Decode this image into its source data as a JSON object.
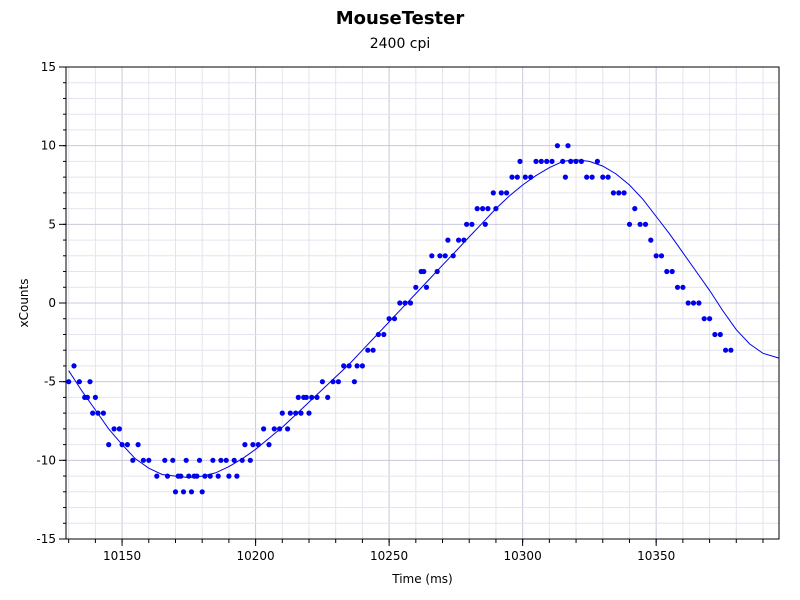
{
  "chart_data": {
    "type": "scatter",
    "title": "MouseTester",
    "subtitle": "2400 cpi",
    "xlabel": "Time (ms)",
    "ylabel": "xCounts",
    "xlim": [
      10129,
      10396
    ],
    "ylim": [
      -15,
      15
    ],
    "xticks": [
      10150,
      10200,
      10250,
      10300,
      10350
    ],
    "yticks": [
      -15,
      -10,
      -5,
      0,
      5,
      10,
      15
    ],
    "grid": true,
    "colors": {
      "series": "#0000ee",
      "grid_major": "#c8c8dc",
      "grid_minor": "#e4e4ee",
      "axis": "#000000"
    },
    "series": [
      {
        "points": [
          [
            10130,
            -5
          ],
          [
            10132,
            -4
          ],
          [
            10134,
            -5
          ],
          [
            10136,
            -6
          ],
          [
            10137,
            -6
          ],
          [
            10138,
            -5
          ],
          [
            10139,
            -7
          ],
          [
            10140,
            -6
          ],
          [
            10141,
            -7
          ],
          [
            10143,
            -7
          ],
          [
            10145,
            -9
          ],
          [
            10147,
            -8
          ],
          [
            10149,
            -8
          ],
          [
            10150,
            -9
          ],
          [
            10152,
            -9
          ],
          [
            10154,
            -10
          ],
          [
            10156,
            -9
          ],
          [
            10158,
            -10
          ],
          [
            10160,
            -10
          ],
          [
            10163,
            -11
          ],
          [
            10166,
            -10
          ],
          [
            10167,
            -11
          ],
          [
            10169,
            -10
          ],
          [
            10170,
            -12
          ],
          [
            10171,
            -11
          ],
          [
            10172,
            -11
          ],
          [
            10173,
            -12
          ],
          [
            10174,
            -10
          ],
          [
            10175,
            -11
          ],
          [
            10176,
            -12
          ],
          [
            10177,
            -11
          ],
          [
            10178,
            -11
          ],
          [
            10179,
            -10
          ],
          [
            10180,
            -12
          ],
          [
            10181,
            -11
          ],
          [
            10183,
            -11
          ],
          [
            10184,
            -10
          ],
          [
            10186,
            -11
          ],
          [
            10187,
            -10
          ],
          [
            10189,
            -10
          ],
          [
            10190,
            -11
          ],
          [
            10192,
            -10
          ],
          [
            10193,
            -11
          ],
          [
            10195,
            -10
          ],
          [
            10196,
            -9
          ],
          [
            10198,
            -10
          ],
          [
            10199,
            -9
          ],
          [
            10201,
            -9
          ],
          [
            10203,
            -8
          ],
          [
            10205,
            -9
          ],
          [
            10207,
            -8
          ],
          [
            10209,
            -8
          ],
          [
            10210,
            -7
          ],
          [
            10212,
            -8
          ],
          [
            10213,
            -7
          ],
          [
            10215,
            -7
          ],
          [
            10216,
            -6
          ],
          [
            10217,
            -7
          ],
          [
            10218,
            -6
          ],
          [
            10219,
            -6
          ],
          [
            10220,
            -7
          ],
          [
            10221,
            -6
          ],
          [
            10223,
            -6
          ],
          [
            10225,
            -5
          ],
          [
            10227,
            -6
          ],
          [
            10229,
            -5
          ],
          [
            10231,
            -5
          ],
          [
            10233,
            -4
          ],
          [
            10235,
            -4
          ],
          [
            10237,
            -5
          ],
          [
            10238,
            -4
          ],
          [
            10240,
            -4
          ],
          [
            10242,
            -3
          ],
          [
            10244,
            -3
          ],
          [
            10246,
            -2
          ],
          [
            10248,
            -2
          ],
          [
            10250,
            -1
          ],
          [
            10252,
            -1
          ],
          [
            10254,
            0
          ],
          [
            10256,
            0
          ],
          [
            10258,
            0
          ],
          [
            10260,
            1
          ],
          [
            10262,
            2
          ],
          [
            10263,
            2
          ],
          [
            10264,
            1
          ],
          [
            10266,
            3
          ],
          [
            10268,
            2
          ],
          [
            10269,
            3
          ],
          [
            10271,
            3
          ],
          [
            10272,
            4
          ],
          [
            10274,
            3
          ],
          [
            10276,
            4
          ],
          [
            10278,
            4
          ],
          [
            10279,
            5
          ],
          [
            10281,
            5
          ],
          [
            10283,
            6
          ],
          [
            10285,
            6
          ],
          [
            10286,
            5
          ],
          [
            10287,
            6
          ],
          [
            10289,
            7
          ],
          [
            10290,
            6
          ],
          [
            10292,
            7
          ],
          [
            10294,
            7
          ],
          [
            10296,
            8
          ],
          [
            10298,
            8
          ],
          [
            10299,
            9
          ],
          [
            10301,
            8
          ],
          [
            10303,
            8
          ],
          [
            10305,
            9
          ],
          [
            10307,
            9
          ],
          [
            10309,
            9
          ],
          [
            10311,
            9
          ],
          [
            10313,
            10
          ],
          [
            10315,
            9
          ],
          [
            10316,
            8
          ],
          [
            10317,
            10
          ],
          [
            10318,
            9
          ],
          [
            10320,
            9
          ],
          [
            10322,
            9
          ],
          [
            10324,
            8
          ],
          [
            10326,
            8
          ],
          [
            10328,
            9
          ],
          [
            10330,
            8
          ],
          [
            10332,
            8
          ],
          [
            10334,
            7
          ],
          [
            10336,
            7
          ],
          [
            10338,
            7
          ],
          [
            10340,
            5
          ],
          [
            10342,
            6
          ],
          [
            10344,
            5
          ],
          [
            10346,
            5
          ],
          [
            10348,
            4
          ],
          [
            10350,
            3
          ],
          [
            10352,
            3
          ],
          [
            10354,
            2
          ],
          [
            10356,
            2
          ],
          [
            10358,
            1
          ],
          [
            10360,
            1
          ],
          [
            10362,
            0
          ],
          [
            10364,
            0
          ],
          [
            10366,
            0
          ],
          [
            10368,
            -1
          ],
          [
            10370,
            -1
          ],
          [
            10372,
            -2
          ],
          [
            10374,
            -2
          ],
          [
            10376,
            -3
          ],
          [
            10378,
            -3
          ]
        ],
        "trend": [
          [
            10130,
            -4.3
          ],
          [
            10135,
            -5.6
          ],
          [
            10140,
            -6.8
          ],
          [
            10145,
            -8.0
          ],
          [
            10150,
            -9.0
          ],
          [
            10155,
            -9.9
          ],
          [
            10160,
            -10.5
          ],
          [
            10165,
            -10.9
          ],
          [
            10170,
            -11.0
          ],
          [
            10175,
            -11.1
          ],
          [
            10180,
            -11.0
          ],
          [
            10185,
            -10.8
          ],
          [
            10190,
            -10.4
          ],
          [
            10195,
            -9.9
          ],
          [
            10200,
            -9.3
          ],
          [
            10205,
            -8.6
          ],
          [
            10210,
            -7.9
          ],
          [
            10215,
            -7.1
          ],
          [
            10220,
            -6.3
          ],
          [
            10225,
            -5.5
          ],
          [
            10230,
            -4.7
          ],
          [
            10235,
            -3.9
          ],
          [
            10240,
            -3.0
          ],
          [
            10245,
            -2.1
          ],
          [
            10250,
            -1.2
          ],
          [
            10255,
            -0.3
          ],
          [
            10260,
            0.6
          ],
          [
            10265,
            1.5
          ],
          [
            10270,
            2.4
          ],
          [
            10275,
            3.3
          ],
          [
            10280,
            4.2
          ],
          [
            10285,
            5.1
          ],
          [
            10290,
            6.0
          ],
          [
            10295,
            6.8
          ],
          [
            10300,
            7.5
          ],
          [
            10305,
            8.1
          ],
          [
            10310,
            8.6
          ],
          [
            10315,
            9.0
          ],
          [
            10320,
            9.1
          ],
          [
            10325,
            9.0
          ],
          [
            10330,
            8.7
          ],
          [
            10335,
            8.2
          ],
          [
            10340,
            7.5
          ],
          [
            10345,
            6.6
          ],
          [
            10350,
            5.5
          ],
          [
            10355,
            4.4
          ],
          [
            10360,
            3.2
          ],
          [
            10365,
            2.0
          ],
          [
            10370,
            0.8
          ],
          [
            10375,
            -0.5
          ],
          [
            10380,
            -1.7
          ],
          [
            10385,
            -2.6
          ],
          [
            10390,
            -3.2
          ],
          [
            10396,
            -3.5
          ]
        ]
      }
    ]
  }
}
